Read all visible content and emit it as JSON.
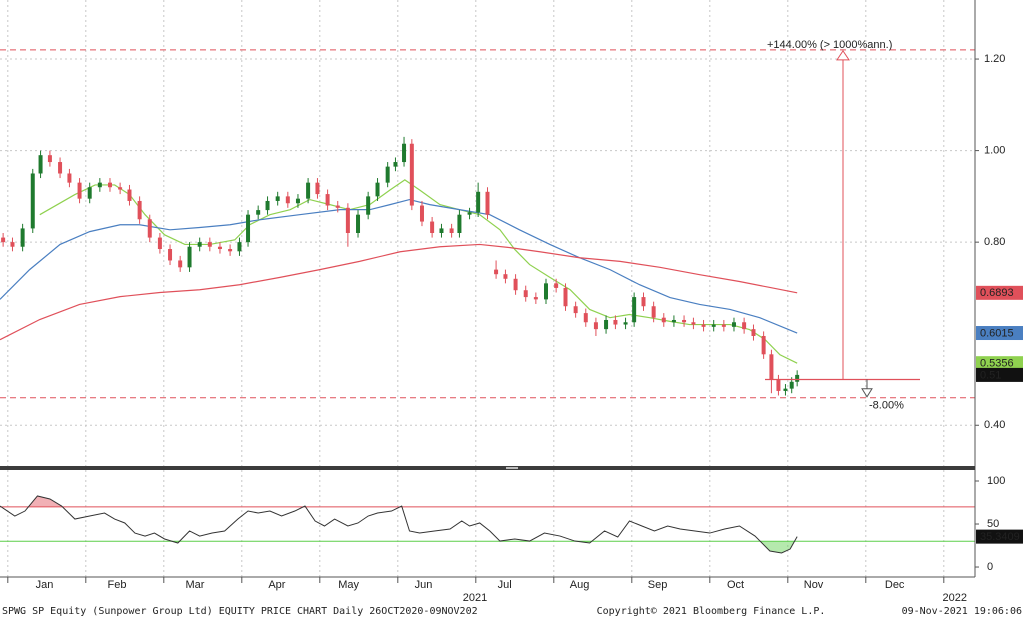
{
  "chart_data": [
    {
      "type": "candlestick",
      "x": [
        -0.06,
        0.06,
        0.19,
        0.32,
        0.42,
        0.54,
        0.67,
        0.79,
        0.92,
        1.05,
        1.18,
        1.31,
        1.44,
        1.56,
        1.69,
        1.82,
        1.95,
        2.08,
        2.21,
        2.33,
        2.46,
        2.59,
        2.72,
        2.85,
        2.97,
        3.08,
        3.21,
        3.33,
        3.46,
        3.59,
        3.72,
        3.85,
        3.97,
        4.1,
        4.23,
        4.36,
        4.49,
        4.62,
        4.74,
        4.87,
        4.97,
        5.08,
        5.18,
        5.31,
        5.44,
        5.56,
        5.69,
        5.79,
        5.92,
        6.03,
        6.15,
        6.26,
        6.38,
        6.51,
        6.64,
        6.77,
        6.9,
        7.03,
        7.15,
        7.28,
        7.41,
        7.54,
        7.67,
        7.79,
        7.92,
        8.03,
        8.15,
        8.28,
        8.41,
        8.54,
        8.67,
        8.79,
        8.92,
        9.05,
        9.18,
        9.31,
        9.44,
        9.56,
        9.69,
        9.79,
        9.88,
        9.97,
        10.05,
        10.12
      ],
      "open": [
        0.81,
        0.8,
        0.79,
        0.83,
        0.95,
        0.99,
        0.975,
        0.95,
        0.93,
        0.895,
        0.92,
        0.93,
        0.92,
        0.915,
        0.89,
        0.85,
        0.81,
        0.785,
        0.76,
        0.745,
        0.79,
        0.8,
        0.79,
        0.785,
        0.78,
        0.8,
        0.86,
        0.87,
        0.89,
        0.9,
        0.885,
        0.895,
        0.93,
        0.905,
        0.88,
        0.875,
        0.82,
        0.86,
        0.9,
        0.93,
        0.965,
        0.975,
        1.015,
        0.88,
        0.845,
        0.82,
        0.83,
        0.82,
        0.86,
        0.865,
        0.91,
        0.74,
        0.73,
        0.72,
        0.695,
        0.68,
        0.675,
        0.71,
        0.7,
        0.66,
        0.645,
        0.625,
        0.61,
        0.63,
        0.62,
        0.625,
        0.68,
        0.66,
        0.635,
        0.625,
        0.63,
        0.625,
        0.62,
        0.615,
        0.62,
        0.615,
        0.625,
        0.61,
        0.595,
        0.555,
        0.5,
        0.475,
        0.48,
        0.495
      ],
      "high": [
        0.82,
        0.81,
        0.84,
        0.96,
        1.0,
        1.0,
        0.985,
        0.96,
        0.94,
        0.93,
        0.94,
        0.94,
        0.93,
        0.925,
        0.9,
        0.86,
        0.82,
        0.795,
        0.77,
        0.8,
        0.81,
        0.81,
        0.8,
        0.795,
        0.81,
        0.87,
        0.88,
        0.9,
        0.91,
        0.91,
        0.905,
        0.94,
        0.94,
        0.915,
        0.89,
        0.885,
        0.87,
        0.91,
        0.94,
        0.975,
        0.985,
        1.03,
        1.025,
        0.89,
        0.855,
        0.84,
        0.84,
        0.87,
        0.875,
        0.93,
        0.92,
        0.76,
        0.74,
        0.73,
        0.705,
        0.69,
        0.72,
        0.72,
        0.71,
        0.67,
        0.655,
        0.635,
        0.64,
        0.64,
        0.635,
        0.69,
        0.69,
        0.67,
        0.645,
        0.64,
        0.64,
        0.635,
        0.63,
        0.63,
        0.63,
        0.635,
        0.635,
        0.62,
        0.605,
        0.565,
        0.51,
        0.49,
        0.505,
        0.52
      ],
      "low": [
        0.79,
        0.78,
        0.78,
        0.82,
        0.94,
        0.965,
        0.94,
        0.92,
        0.885,
        0.885,
        0.91,
        0.91,
        0.905,
        0.88,
        0.84,
        0.8,
        0.775,
        0.75,
        0.735,
        0.735,
        0.78,
        0.78,
        0.775,
        0.77,
        0.77,
        0.79,
        0.85,
        0.86,
        0.88,
        0.875,
        0.875,
        0.885,
        0.895,
        0.87,
        0.865,
        0.79,
        0.81,
        0.85,
        0.89,
        0.92,
        0.955,
        0.965,
        0.87,
        0.835,
        0.81,
        0.81,
        0.81,
        0.81,
        0.85,
        0.855,
        0.85,
        0.72,
        0.71,
        0.685,
        0.67,
        0.665,
        0.665,
        0.69,
        0.65,
        0.635,
        0.615,
        0.595,
        0.6,
        0.61,
        0.61,
        0.615,
        0.65,
        0.625,
        0.615,
        0.615,
        0.615,
        0.61,
        0.605,
        0.605,
        0.605,
        0.605,
        0.6,
        0.585,
        0.545,
        0.47,
        0.465,
        0.465,
        0.47,
        0.485
      ],
      "close": [
        0.8,
        0.79,
        0.83,
        0.95,
        0.99,
        0.975,
        0.95,
        0.93,
        0.895,
        0.92,
        0.93,
        0.92,
        0.915,
        0.89,
        0.85,
        0.81,
        0.785,
        0.76,
        0.745,
        0.79,
        0.8,
        0.79,
        0.785,
        0.78,
        0.8,
        0.86,
        0.87,
        0.89,
        0.9,
        0.885,
        0.895,
        0.93,
        0.905,
        0.88,
        0.875,
        0.82,
        0.86,
        0.9,
        0.93,
        0.965,
        0.975,
        1.015,
        0.88,
        0.845,
        0.82,
        0.83,
        0.82,
        0.86,
        0.865,
        0.91,
        0.86,
        0.73,
        0.72,
        0.695,
        0.68,
        0.675,
        0.71,
        0.7,
        0.66,
        0.645,
        0.625,
        0.61,
        0.63,
        0.62,
        0.625,
        0.68,
        0.66,
        0.635,
        0.625,
        0.63,
        0.625,
        0.62,
        0.615,
        0.62,
        0.615,
        0.625,
        0.61,
        0.595,
        0.555,
        0.5,
        0.475,
        0.48,
        0.495,
        0.51
      ],
      "up_color": "#1f7a2e",
      "down_color": "#e0505a",
      "series": [
        {
          "color": "#8fd14f",
          "tag_text": "#000",
          "x": [
            0.41,
            0.86,
            1.12,
            1.37,
            1.56,
            1.76,
            2.01,
            2.27,
            2.59,
            2.91,
            3.1,
            3.36,
            3.62,
            3.87,
            4.13,
            4.38,
            4.64,
            4.9,
            5.09,
            5.28,
            5.54,
            5.79,
            6.05,
            6.31,
            6.5,
            6.69,
            6.95,
            7.21,
            7.46,
            7.72,
            7.97,
            8.23,
            8.49,
            8.74,
            9.0,
            9.26,
            9.51,
            9.71,
            9.9,
            10.12
          ],
          "values": [
            0.86,
            0.904,
            0.925,
            0.925,
            0.904,
            0.86,
            0.816,
            0.795,
            0.795,
            0.805,
            0.838,
            0.86,
            0.871,
            0.893,
            0.882,
            0.871,
            0.882,
            0.914,
            0.936,
            0.914,
            0.882,
            0.871,
            0.86,
            0.827,
            0.784,
            0.751,
            0.723,
            0.696,
            0.653,
            0.635,
            0.642,
            0.635,
            0.627,
            0.62,
            0.62,
            0.62,
            0.609,
            0.587,
            0.554,
            0.5356
          ]
        },
        {
          "color": "#4a7fc1",
          "tag_text": "#fff",
          "x": [
            -0.1,
            0.28,
            0.67,
            1.05,
            1.44,
            1.69,
            2.08,
            2.46,
            2.85,
            3.23,
            3.74,
            4.26,
            4.64,
            4.9,
            5.15,
            5.41,
            5.79,
            6.18,
            6.56,
            6.95,
            7.33,
            7.72,
            8.1,
            8.49,
            8.87,
            9.26,
            9.64,
            10.12
          ],
          "values": [
            0.675,
            0.74,
            0.795,
            0.823,
            0.838,
            0.838,
            0.827,
            0.832,
            0.838,
            0.849,
            0.86,
            0.871,
            0.871,
            0.882,
            0.893,
            0.882,
            0.871,
            0.86,
            0.827,
            0.795,
            0.766,
            0.74,
            0.707,
            0.679,
            0.664,
            0.653,
            0.635,
            0.6015
          ]
        },
        {
          "color": "#e0505a",
          "tag_text": "#fff",
          "x": [
            -0.1,
            0.41,
            0.92,
            1.44,
            1.95,
            2.46,
            2.97,
            3.49,
            4.0,
            4.51,
            5.03,
            5.54,
            6.05,
            6.44,
            6.82,
            7.33,
            7.85,
            8.36,
            8.87,
            9.38,
            9.77,
            10.12
          ],
          "values": [
            0.587,
            0.631,
            0.664,
            0.681,
            0.69,
            0.696,
            0.707,
            0.723,
            0.74,
            0.758,
            0.779,
            0.79,
            0.795,
            0.788,
            0.779,
            0.766,
            0.758,
            0.745,
            0.729,
            0.714,
            0.701,
            0.6893
          ]
        }
      ],
      "xlim": [
        -0.1,
        12.4
      ],
      "ylim": [
        0.311,
        1.329
      ],
      "yticks": [
        {
          "value": 0.4,
          "label": "0.40"
        },
        {
          "value": 0.8,
          "label": "0.80"
        },
        {
          "value": 1.0,
          "label": "1.00"
        },
        {
          "value": 1.2,
          "label": "1.20"
        }
      ],
      "grid": true,
      "annotations": {
        "base": 0.5,
        "target": {
          "value": 1.22,
          "label": "+144.00% (> 1000%ann.)"
        },
        "stop": {
          "value": 0.46,
          "label": "-8.00%"
        },
        "color": "#e0505a"
      }
    },
    {
      "type": "line",
      "x": [
        -0.1,
        0.09,
        0.22,
        0.38,
        0.54,
        0.69,
        0.86,
        1.05,
        1.24,
        1.37,
        1.5,
        1.63,
        1.76,
        1.88,
        2.01,
        2.18,
        2.33,
        2.46,
        2.62,
        2.78,
        2.95,
        3.08,
        3.21,
        3.36,
        3.51,
        3.68,
        3.81,
        3.94,
        4.06,
        4.19,
        4.36,
        4.49,
        4.62,
        4.74,
        4.92,
        5.05,
        5.15,
        5.28,
        5.47,
        5.67,
        5.82,
        5.92,
        6.05,
        6.18,
        6.31,
        6.5,
        6.69,
        6.88,
        7.08,
        7.27,
        7.46,
        7.65,
        7.82,
        7.97,
        8.13,
        8.29,
        8.46,
        8.62,
        8.81,
        9.0,
        9.19,
        9.38,
        9.58,
        9.77,
        9.92,
        10.03,
        10.12
      ],
      "values": [
        70.9,
        59.3,
        65.1,
        82.6,
        79.1,
        70.9,
        55.8,
        59.3,
        62.8,
        55.8,
        51.2,
        39.5,
        36,
        39.5,
        32.6,
        27.9,
        41.9,
        36,
        39.5,
        41.9,
        55.8,
        65.1,
        62.8,
        65.1,
        59.3,
        65.1,
        70.9,
        53.5,
        47.7,
        55.8,
        47.7,
        51.2,
        59.3,
        62.8,
        65.1,
        70.9,
        41.9,
        39.5,
        41.9,
        44.2,
        53.5,
        47.7,
        51.2,
        41.9,
        30.2,
        32.6,
        30.2,
        39.5,
        36,
        30.2,
        27.9,
        41.9,
        34.9,
        53.5,
        47.7,
        41.9,
        47.7,
        44.2,
        41.9,
        39.5,
        44.2,
        47.7,
        36,
        18.6,
        16.3,
        20.9,
        35.3409
      ],
      "color": "#333333",
      "levels": [
        {
          "value": 70,
          "color": "#e0505a"
        },
        {
          "value": 30,
          "color": "#5ccf4a"
        }
      ],
      "xlim": [
        -0.1,
        12.4
      ],
      "ylim": [
        -11.6,
        112.8
      ],
      "yticks": [
        0,
        50,
        100
      ],
      "xticks": [
        {
          "value": 0.47,
          "label": "Jan"
        },
        {
          "value": 1.4,
          "label": "Feb"
        },
        {
          "value": 2.4,
          "label": "Mar"
        },
        {
          "value": 3.45,
          "label": "Apr"
        },
        {
          "value": 4.37,
          "label": "May"
        },
        {
          "value": 5.33,
          "label": "Jun"
        },
        {
          "value": 6.37,
          "label": "Jul"
        },
        {
          "value": 7.33,
          "label": "Aug"
        },
        {
          "value": 8.33,
          "label": "Sep"
        },
        {
          "value": 9.33,
          "label": "Oct"
        },
        {
          "value": 10.33,
          "label": "Nov"
        },
        {
          "value": 11.37,
          "label": "Dec"
        }
      ],
      "year_ticks": [
        {
          "value": 5.99,
          "label": "2021"
        },
        {
          "value": 12.14,
          "label": "2022"
        }
      ],
      "month_bounds": [
        0,
        1,
        2,
        3,
        4,
        5,
        6,
        7,
        8,
        9,
        10,
        11,
        12
      ]
    }
  ],
  "footer": {
    "left": "SPWG SP Equity (Sunpower Group Ltd) EQUITY PRICE CHART  Daily 26OCT2020-09NOV202",
    "center": "Copyright© 2021 Bloomberg Finance L.P.",
    "right": "09-Nov-2021 19:06:06"
  }
}
